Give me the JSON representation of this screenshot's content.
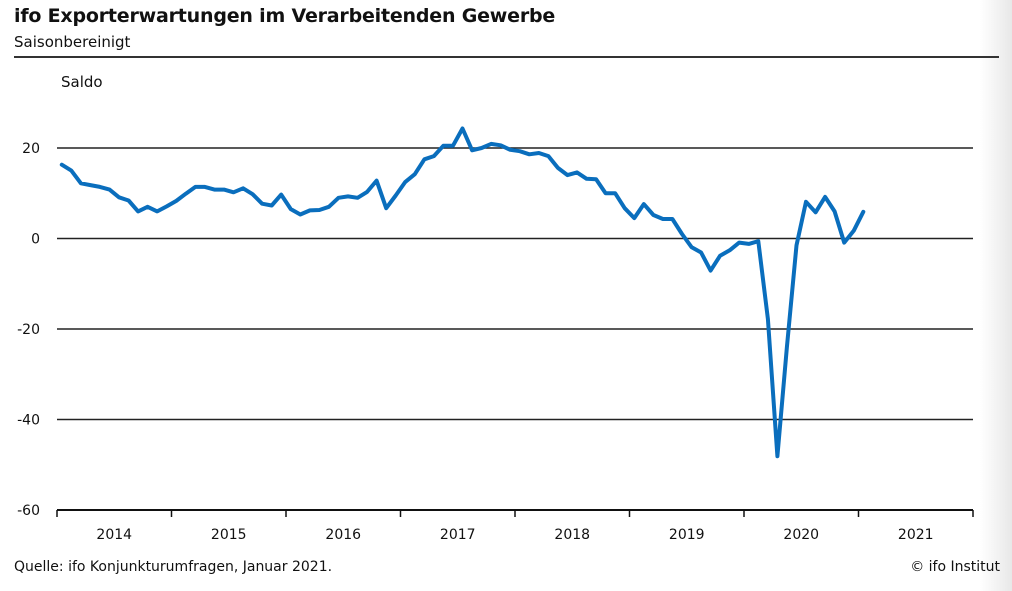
{
  "title": "ifo Exporterwartungen im Verarbeitenden Gewerbe",
  "subtitle": "Saisonbereinigt",
  "footer": {
    "source": "Quelle: ifo Konjunkturumfragen,   Januar 2021.",
    "copyright": "© ifo Institut"
  },
  "chart_data": {
    "type": "line",
    "title": "ifo Exporterwartungen im Verarbeitenden Gewerbe",
    "subtitle": "Saisonbereinigt",
    "ylabel": "Saldo",
    "xlabel": "",
    "ylim": [
      -60,
      20
    ],
    "yticks": [
      20,
      0,
      -20,
      -40,
      -60
    ],
    "xticks": [
      "2014",
      "2015",
      "2016",
      "2017",
      "2018",
      "2019",
      "2020",
      "2021"
    ],
    "xrange": [
      "2014-01",
      "2021-12"
    ],
    "grid": "horizontal",
    "line_color": "#0a6ebd",
    "series": [
      {
        "name": "Exporterwartungen",
        "start": "2014-01",
        "frequency": "monthly",
        "values": [
          16.3,
          15.0,
          12.2,
          11.8,
          11.4,
          10.8,
          9.1,
          8.4,
          6.0,
          7.0,
          6.0,
          7.1,
          8.3,
          9.9,
          11.4,
          11.4,
          10.8,
          10.8,
          10.2,
          11.1,
          9.8,
          7.7,
          7.3,
          9.7,
          6.5,
          5.3,
          6.2,
          6.3,
          7.0,
          9.0,
          9.3,
          9.0,
          10.3,
          12.8,
          6.7,
          9.5,
          12.5,
          14.2,
          17.5,
          18.2,
          20.5,
          20.5,
          24.3,
          19.5,
          20.0,
          20.9,
          20.6,
          19.6,
          19.3,
          18.6,
          18.9,
          18.2,
          15.6,
          14.0,
          14.6,
          13.2,
          13.1,
          10.0,
          10.0,
          6.7,
          4.5,
          7.6,
          5.2,
          4.3,
          4.3,
          1.0,
          -1.9,
          -3.1,
          -7.1,
          -3.8,
          -2.6,
          -0.9,
          -1.2,
          -0.6,
          -17.8,
          -48.1,
          -24.0,
          -1.5,
          8.1,
          5.8,
          9.2,
          6.0,
          -0.9,
          1.7,
          5.9
        ]
      }
    ]
  }
}
